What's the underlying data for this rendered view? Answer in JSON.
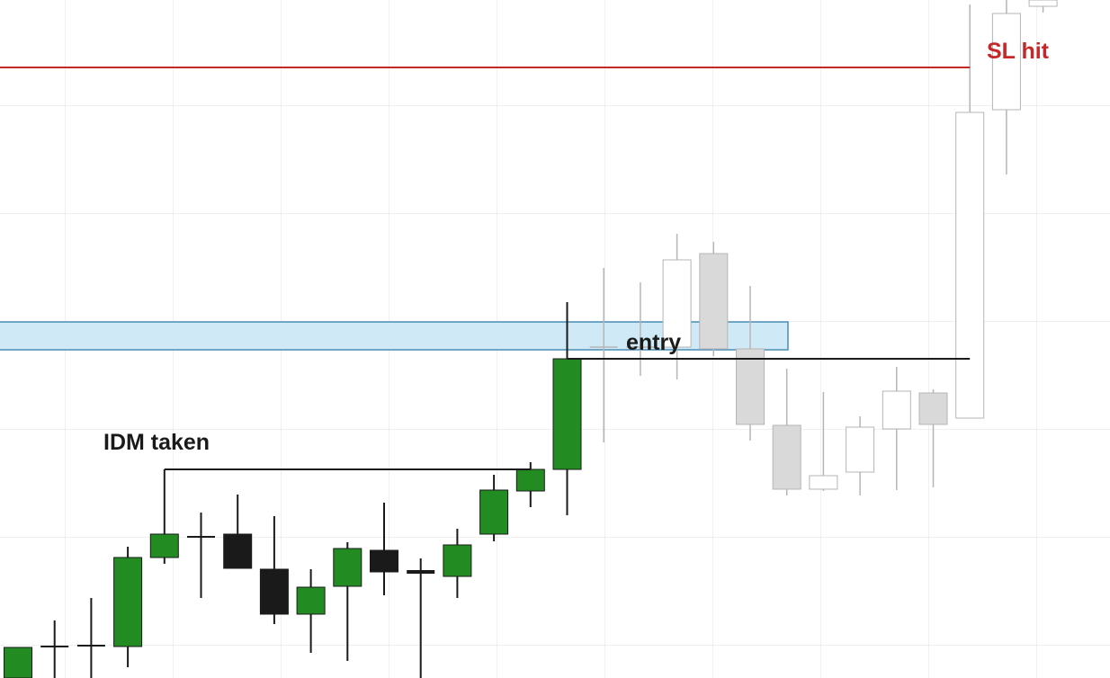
{
  "chart_data": {
    "type": "candlestick",
    "ylim": [
      0,
      754
    ],
    "candles": [
      {
        "open": 0,
        "high": 34,
        "low": 0,
        "close": 34,
        "color": "#228b22"
      },
      {
        "open": 35,
        "high": 64,
        "low": 0,
        "close": 35,
        "color": "#228b22"
      },
      {
        "open": 36,
        "high": 89,
        "low": 0,
        "close": 36,
        "color": "#228b22"
      },
      {
        "open": 35,
        "high": 146,
        "low": 12,
        "close": 134,
        "color": "#228b22"
      },
      {
        "open": 134,
        "high": 232,
        "low": 127,
        "close": 160,
        "color": "#228b22"
      },
      {
        "open": 157,
        "high": 184,
        "low": 89,
        "close": 157,
        "color": "#228b22"
      },
      {
        "open": 160,
        "high": 204,
        "low": 122,
        "close": 122,
        "color": "#1a1a1a"
      },
      {
        "open": 121,
        "high": 180,
        "low": 60,
        "close": 71,
        "color": "#1a1a1a"
      },
      {
        "open": 71,
        "high": 121,
        "low": 28,
        "close": 101,
        "color": "#228b22"
      },
      {
        "open": 102,
        "high": 151,
        "low": 19,
        "close": 144,
        "color": "#228b22"
      },
      {
        "open": 142,
        "high": 195,
        "low": 92,
        "close": 118,
        "color": "#1a1a1a"
      },
      {
        "open": 118,
        "high": 133,
        "low": 0,
        "close": 118,
        "color": "#1a1a1a"
      },
      {
        "open": 113,
        "high": 166,
        "low": 89,
        "close": 148,
        "color": "#228b22"
      },
      {
        "open": 160,
        "high": 226,
        "low": 152,
        "close": 209,
        "color": "#228b22"
      },
      {
        "open": 208,
        "high": 240,
        "low": 190,
        "close": 232,
        "color": "#228b22"
      },
      {
        "open": 232,
        "high": 418,
        "low": 181,
        "close": 355,
        "color": "#228b22"
      },
      {
        "open": 368,
        "high": 456,
        "low": 262,
        "close": 368,
        "color": "#ffffff"
      },
      {
        "open": 368,
        "high": 440,
        "low": 336,
        "close": 368,
        "color": "#ffffff"
      },
      {
        "open": 368,
        "high": 494,
        "low": 332,
        "close": 465,
        "color": "#ffffff"
      },
      {
        "open": 472,
        "high": 485,
        "low": 358,
        "close": 366,
        "color": "#d9d9d9"
      },
      {
        "open": 366,
        "high": 436,
        "low": 264,
        "close": 282,
        "color": "#d9d9d9"
      },
      {
        "open": 281,
        "high": 344,
        "low": 203,
        "close": 210,
        "color": "#d9d9d9"
      },
      {
        "open": 210,
        "high": 318,
        "low": 208,
        "close": 225,
        "color": "#ffffff"
      },
      {
        "open": 229,
        "high": 291,
        "low": 203,
        "close": 279,
        "color": "#ffffff"
      },
      {
        "open": 277,
        "high": 346,
        "low": 209,
        "close": 319,
        "color": "#ffffff"
      },
      {
        "open": 317,
        "high": 321,
        "low": 212,
        "close": 282,
        "color": "#d9d9d9"
      },
      {
        "open": 289,
        "high": 749,
        "low": 289,
        "close": 629,
        "color": "#ffffff"
      },
      {
        "open": 632,
        "high": 754,
        "low": 560,
        "close": 739,
        "color": "#ffffff"
      },
      {
        "open": 747,
        "high": 754,
        "low": 740,
        "close": 754,
        "color": "#ffffff"
      }
    ],
    "faded_from": 16,
    "zone": {
      "low": 365,
      "high": 396,
      "color": "#cfe9f6"
    },
    "annotations": [
      {
        "text": "IDM taken",
        "level": 232,
        "color": "#1a1a1a"
      },
      {
        "text": "entry",
        "level": 355,
        "color": "#1a1a1a"
      },
      {
        "text": "SL hit",
        "level": 679,
        "color": "#c62828"
      }
    ]
  }
}
